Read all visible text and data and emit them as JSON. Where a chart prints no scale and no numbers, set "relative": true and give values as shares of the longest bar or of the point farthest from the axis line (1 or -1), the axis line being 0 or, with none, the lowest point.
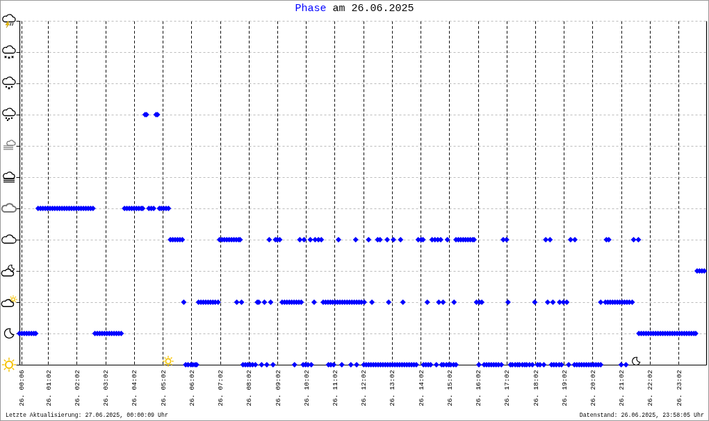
{
  "chart_data": {
    "type": "scatter",
    "title": "Phase am 26.06.2025",
    "annotations": [
      "Letzte Aktualisierung: 27.06.2025, 00:00:09 Uhr",
      "Datenstand: 26.06.2025, 23:58:05 Uhr"
    ],
    "relative": true,
    "x": [
      "2025-06-26T00:02",
      "2025-06-26T00:07",
      "2025-06-26T00:12",
      "2025-06-26T00:17",
      "2025-06-26T00:22",
      "2025-06-26T00:27",
      "2025-06-26T00:32",
      "2025-06-26T00:36",
      "2025-06-26T00:41",
      "2025-06-26T00:46",
      "2025-06-26T00:51",
      "2025-06-26T00:56",
      "2025-06-26T01:01",
      "2025-06-26T01:06",
      "2025-06-26T01:11",
      "2025-06-26T01:16",
      "2025-06-26T01:21",
      "2025-06-26T01:26",
      "2025-06-26T01:31",
      "2025-06-26T01:36",
      "2025-06-26T01:41",
      "2025-06-26T01:46",
      "2025-06-26T01:51",
      "2025-06-26T01:56",
      "2025-06-26T02:01",
      "2025-06-26T02:06",
      "2025-06-26T02:11",
      "2025-06-26T02:16",
      "2025-06-26T02:21",
      "2025-06-26T02:26",
      "2025-06-26T02:31",
      "2025-06-26T02:36",
      "2025-06-26T02:40",
      "2025-06-26T02:45",
      "2025-06-26T02:50",
      "2025-06-26T02:55",
      "2025-06-26T03:00",
      "2025-06-26T03:05",
      "2025-06-26T03:10",
      "2025-06-26T03:15",
      "2025-06-26T03:20",
      "2025-06-26T03:25",
      "2025-06-26T03:30",
      "2025-06-26T03:35",
      "2025-06-26T03:42",
      "2025-06-26T03:47",
      "2025-06-26T03:52",
      "2025-06-26T03:57",
      "2025-06-26T04:02",
      "2025-06-26T04:07",
      "2025-06-26T04:12",
      "2025-06-26T04:17",
      "2025-06-26T04:20",
      "2025-06-26T04:33",
      "2025-06-26T04:38",
      "2025-06-26T04:43",
      "2025-06-26T04:55",
      "2025-06-26T04:59",
      "2025-06-26T05:04",
      "2025-06-26T05:09",
      "2025-06-26T05:14",
      "2025-06-26T04:25",
      "2025-06-26T04:28",
      "2025-06-26T04:48",
      "2025-06-26T04:51",
      "2025-06-26T05:18",
      "2025-06-26T05:23",
      "2025-06-26T05:28",
      "2025-06-26T05:33",
      "2025-06-26T05:38",
      "2025-06-26T05:43",
      "2025-06-26T05:46",
      "2025-06-26T05:50",
      "2025-06-26T05:55",
      "2025-06-26T06:01",
      "2025-06-26T06:05",
      "2025-06-26T06:10",
      "2025-06-26T06:13",
      "2025-06-26T06:17",
      "2025-06-26T06:22",
      "2025-06-26T06:27",
      "2025-06-26T06:32",
      "2025-06-26T06:37",
      "2025-06-26T06:42",
      "2025-06-26T06:47",
      "2025-06-26T06:52",
      "2025-06-26T06:58",
      "2025-06-26T07:01",
      "2025-06-26T07:06",
      "2025-06-26T07:11",
      "2025-06-26T07:16",
      "2025-06-26T07:21",
      "2025-06-26T07:26",
      "2025-06-26T07:31",
      "2025-06-26T07:36",
      "2025-06-26T07:41",
      "2025-06-26T07:44",
      "2025-06-26T07:37",
      "2025-06-26T07:47",
      "2025-06-26T07:50",
      "2025-06-26T07:55",
      "2025-06-26T08:00",
      "2025-06-26T08:05",
      "2025-06-26T08:10",
      "2025-06-26T08:16",
      "2025-06-26T08:20",
      "2025-06-26T08:23",
      "2025-06-26T08:35",
      "2025-06-26T08:48",
      "2025-06-26T08:29",
      "2025-06-26T08:40",
      "2025-06-26T08:53",
      "2025-06-26T08:45",
      "2025-06-26T08:58",
      "2025-06-26T09:02",
      "2025-06-26T09:07",
      "2025-06-26T09:12",
      "2025-06-26T09:17",
      "2025-06-26T09:22",
      "2025-06-26T09:27",
      "2025-06-26T09:32",
      "2025-06-26T09:37",
      "2025-06-26T09:42",
      "2025-06-26T09:47",
      "2025-06-26T09:52",
      "2025-06-26T09:38",
      "2025-06-26T09:56",
      "2025-06-26T10:01",
      "2025-06-26T10:06",
      "2025-06-26T10:13",
      "2025-06-26T09:49",
      "2025-06-26T09:58",
      "2025-06-26T10:11",
      "2025-06-26T10:21",
      "2025-06-26T10:28",
      "2025-06-26T10:34",
      "2025-06-26T10:19",
      "2025-06-26T10:38",
      "2025-06-26T10:43",
      "2025-06-26T10:48",
      "2025-06-26T10:53",
      "2025-06-26T10:58",
      "2025-06-26T11:03",
      "2025-06-26T11:08",
      "2025-06-26T11:13",
      "2025-06-26T11:18",
      "2025-06-26T11:23",
      "2025-06-26T11:28",
      "2025-06-26T11:33",
      "2025-06-26T11:38",
      "2025-06-26T11:43",
      "2025-06-26T11:48",
      "2025-06-26T11:53",
      "2025-06-26T11:58",
      "2025-06-26T12:04",
      "2025-06-26T10:49",
      "2025-06-26T10:54",
      "2025-06-26T11:00",
      "2025-06-26T11:17",
      "2025-06-26T11:36",
      "2025-06-26T11:48",
      "2025-06-26T11:10",
      "2025-06-26T11:46",
      "2025-06-26T12:20",
      "2025-06-26T12:55",
      "2025-06-26T13:25",
      "2025-06-26T14:16",
      "2025-06-26T14:40",
      "2025-06-26T14:49",
      "2025-06-26T15:12",
      "2025-06-26T12:13",
      "2025-06-26T12:32",
      "2025-06-26T12:37",
      "2025-06-26T12:52",
      "2025-06-26T13:05",
      "2025-06-26T13:20",
      "2025-06-26T13:57",
      "2025-06-26T14:03",
      "2025-06-26T14:07",
      "2025-06-26T14:26",
      "2025-06-26T14:32",
      "2025-06-26T14:38",
      "2025-06-26T14:44",
      "2025-06-26T14:58",
      "2025-06-26T12:03",
      "2025-06-26T12:08",
      "2025-06-26T12:13",
      "2025-06-26T12:18",
      "2025-06-26T12:23",
      "2025-06-26T12:28",
      "2025-06-26T12:33",
      "2025-06-26T12:38",
      "2025-06-26T12:43",
      "2025-06-26T12:48",
      "2025-06-26T12:53",
      "2025-06-26T12:58",
      "2025-06-26T13:03",
      "2025-06-26T13:08",
      "2025-06-26T13:13",
      "2025-06-26T13:18",
      "2025-06-26T13:23",
      "2025-06-26T13:28",
      "2025-06-26T13:33",
      "2025-06-26T13:38",
      "2025-06-26T13:43",
      "2025-06-26T13:48",
      "2025-06-26T13:53",
      "2025-06-26T14:08",
      "2025-06-26T14:13",
      "2025-06-26T14:18",
      "2025-06-26T14:23",
      "2025-06-26T14:35",
      "2025-06-26T14:46",
      "2025-06-26T14:50",
      "2025-06-26T14:56",
      "2025-06-26T15:01",
      "2025-06-26T15:05",
      "2025-06-26T15:11",
      "2025-06-26T15:16",
      "2025-06-26T15:16",
      "2025-06-26T15:21",
      "2025-06-26T15:26",
      "2025-06-26T15:31",
      "2025-06-26T15:36",
      "2025-06-26T15:41",
      "2025-06-26T15:46",
      "2025-06-26T15:51",
      "2025-06-26T15:54",
      "2025-06-26T15:59",
      "2025-06-26T16:05",
      "2025-06-26T16:10",
      "2025-06-26T16:04",
      "2025-06-26T16:15",
      "2025-06-26T16:20",
      "2025-06-26T16:25",
      "2025-06-26T16:30",
      "2025-06-26T16:35",
      "2025-06-26T16:40",
      "2025-06-26T16:45",
      "2025-06-26T16:51",
      "2025-06-26T16:55",
      "2025-06-26T17:02",
      "2025-06-26T17:05",
      "2025-06-26T17:10",
      "2025-06-26T17:14",
      "2025-06-26T17:20",
      "2025-06-26T17:25",
      "2025-06-26T17:29",
      "2025-06-26T17:35",
      "2025-06-26T17:40",
      "2025-06-26T17:44",
      "2025-06-26T17:50",
      "2025-06-26T17:56",
      "2025-06-26T18:01",
      "2025-06-26T18:07",
      "2025-06-26T18:12",
      "2025-06-26T18:20",
      "2025-06-26T18:24",
      "2025-06-26T18:33",
      "2025-06-26T18:28",
      "2025-06-26T18:39",
      "2025-06-26T18:36",
      "2025-06-26T18:41",
      "2025-06-26T18:46",
      "2025-06-26T18:52",
      "2025-06-26T18:57",
      "2025-06-26T18:53",
      "2025-06-26T19:01",
      "2025-06-26T19:08",
      "2025-06-26T19:12",
      "2025-06-26T19:16",
      "2025-06-26T19:25",
      "2025-06-26T19:24",
      "2025-06-26T19:29",
      "2025-06-26T19:34",
      "2025-06-26T19:39",
      "2025-06-26T19:44",
      "2025-06-26T19:49",
      "2025-06-26T19:54",
      "2025-06-26T19:59",
      "2025-06-26T20:04",
      "2025-06-26T20:09",
      "2025-06-26T20:14",
      "2025-06-26T20:19",
      "2025-06-26T20:19",
      "2025-06-26T20:29",
      "2025-06-26T20:34",
      "2025-06-26T20:39",
      "2025-06-26T20:44",
      "2025-06-26T20:49",
      "2025-06-26T20:54",
      "2025-06-26T20:59",
      "2025-06-26T21:04",
      "2025-06-26T21:09",
      "2025-06-26T21:14",
      "2025-06-26T21:19",
      "2025-06-26T21:25",
      "2025-06-26T20:31",
      "2025-06-26T20:36",
      "2025-06-26T21:02",
      "2025-06-26T21:12",
      "2025-06-26T21:28",
      "2025-06-26T21:38",
      "2025-06-26T21:39",
      "2025-06-26T21:44",
      "2025-06-26T21:49",
      "2025-06-26T21:54",
      "2025-06-26T21:59",
      "2025-06-26T22:04",
      "2025-06-26T22:09",
      "2025-06-26T22:14",
      "2025-06-26T22:19",
      "2025-06-26T22:24",
      "2025-06-26T22:29",
      "2025-06-26T22:34",
      "2025-06-26T22:39",
      "2025-06-26T22:44",
      "2025-06-26T22:49",
      "2025-06-26T22:54",
      "2025-06-26T22:59",
      "2025-06-26T23:04",
      "2025-06-26T23:09",
      "2025-06-26T23:14",
      "2025-06-26T23:19",
      "2025-06-26T23:24",
      "2025-06-26T23:29",
      "2025-06-26T23:34",
      "2025-06-26T23:38",
      "2025-06-26T23:41",
      "2025-06-26T23:46",
      "2025-06-26T23:51",
      "2025-06-26T23:56"
    ],
    "values": [
      0.125,
      0.125,
      0.125,
      0.125,
      0.125,
      0.125,
      0.125,
      0.125,
      0.625,
      0.625,
      0.625,
      0.625,
      0.625,
      0.625,
      0.625,
      0.625,
      0.625,
      0.625,
      0.625,
      0.625,
      0.625,
      0.625,
      0.625,
      0.625,
      0.625,
      0.625,
      0.625,
      0.625,
      0.625,
      0.625,
      0.625,
      0.625,
      0.125,
      0.125,
      0.125,
      0.125,
      0.125,
      0.125,
      0.125,
      0.125,
      0.125,
      0.125,
      0.125,
      0.125,
      0.625,
      0.625,
      0.625,
      0.625,
      0.625,
      0.625,
      0.625,
      0.625,
      0.625,
      0.625,
      0.625,
      0.625,
      0.625,
      0.625,
      0.625,
      0.625,
      0.625,
      1,
      1,
      1,
      1,
      0.5,
      0.5,
      0.5,
      0.5,
      0.5,
      0.5,
      0.25,
      0,
      0,
      0,
      0,
      0,
      0,
      0.25,
      0.25,
      0.25,
      0.25,
      0.25,
      0.25,
      0.25,
      0.25,
      0.25,
      0.5,
      0.5,
      0.5,
      0.5,
      0.5,
      0.5,
      0.5,
      0.5,
      0.5,
      0.5,
      0.25,
      0.25,
      0,
      0,
      0,
      0,
      0,
      0,
      0.25,
      0.25,
      0.25,
      0.25,
      0,
      0,
      0,
      0.5,
      0.5,
      0.5,
      0.5,
      0.25,
      0.25,
      0.25,
      0.25,
      0.25,
      0.25,
      0.25,
      0.25,
      0.25,
      0,
      0,
      0,
      0,
      0,
      0.5,
      0.5,
      0.5,
      0.5,
      0.5,
      0.5,
      0.25,
      0.25,
      0.25,
      0.25,
      0.25,
      0.25,
      0.25,
      0.25,
      0.25,
      0.25,
      0.25,
      0.25,
      0.25,
      0.25,
      0.25,
      0.25,
      0.25,
      0.25,
      0.25,
      0,
      0,
      0,
      0,
      0,
      0,
      0.5,
      0.5,
      0.25,
      0.25,
      0.25,
      0.25,
      0.25,
      0.25,
      0.25,
      0.5,
      0.5,
      0.5,
      0.5,
      0.5,
      0.5,
      0.5,
      0.5,
      0.5,
      0.5,
      0.5,
      0.5,
      0.5,
      0.5,
      0,
      0,
      0,
      0,
      0,
      0,
      0,
      0,
      0,
      0,
      0,
      0,
      0,
      0,
      0,
      0,
      0,
      0,
      0,
      0,
      0,
      0,
      0,
      0,
      0,
      0,
      0,
      0,
      0,
      0,
      0,
      0,
      0,
      0,
      0,
      0.5,
      0.5,
      0.5,
      0.5,
      0.5,
      0.5,
      0.5,
      0.5,
      0.5,
      0.25,
      0.25,
      0.25,
      0,
      0,
      0,
      0,
      0,
      0,
      0,
      0,
      0,
      0.5,
      0.5,
      0.25,
      0,
      0,
      0,
      0,
      0,
      0,
      0,
      0,
      0,
      0,
      0.25,
      0,
      0,
      0,
      0.5,
      0.5,
      0.25,
      0.25,
      0,
      0,
      0,
      0,
      0,
      0.25,
      0.25,
      0.25,
      0,
      0.5,
      0.5,
      0,
      0,
      0,
      0,
      0,
      0,
      0,
      0,
      0,
      0,
      0,
      0,
      0.25,
      0.25,
      0.25,
      0.25,
      0.25,
      0.25,
      0.25,
      0.25,
      0.25,
      0.25,
      0.25,
      0.25,
      0.25,
      0.5,
      0.5,
      0,
      0,
      0.5,
      0.5,
      0.125,
      0.125,
      0.125,
      0.125,
      0.125,
      0.125,
      0.125,
      0.125,
      0.125,
      0.125,
      0.125,
      0.125,
      0.125,
      0.125,
      0.125,
      0.125,
      0.125,
      0.125,
      0.125,
      0.125,
      0.125,
      0.125,
      0.125,
      0.125,
      0.125,
      0.375,
      0.375,
      0.375,
      0.375
    ],
    "color": "#0000ff",
    "marker": "diamond",
    "xlim": [
      "2025-06-26T00:02",
      "2025-06-27T00:00"
    ],
    "xticks": [
      {
        "value": "2025-06-26T00:06",
        "label": "26. 00:06"
      },
      {
        "value": "2025-06-26T01:02",
        "label": "26. 01:02"
      },
      {
        "value": "2025-06-26T02:02",
        "label": "26. 02:02"
      },
      {
        "value": "2025-06-26T03:02",
        "label": "26. 03:02"
      },
      {
        "value": "2025-06-26T04:02",
        "label": "26. 04:02"
      },
      {
        "value": "2025-06-26T05:02",
        "label": "26. 05:02"
      },
      {
        "value": "2025-06-26T06:02",
        "label": "26. 06:02"
      },
      {
        "value": "2025-06-26T07:02",
        "label": "26. 07:02"
      },
      {
        "value": "2025-06-26T08:02",
        "label": "26. 08:02"
      },
      {
        "value": "2025-06-26T09:02",
        "label": "26. 09:02"
      },
      {
        "value": "2025-06-26T10:02",
        "label": "26. 10:02"
      },
      {
        "value": "2025-06-26T11:02",
        "label": "26. 11:02"
      },
      {
        "value": "2025-06-26T12:02",
        "label": "26. 12:02"
      },
      {
        "value": "2025-06-26T13:02",
        "label": "26. 13:02"
      },
      {
        "value": "2025-06-26T14:02",
        "label": "26. 14:02"
      },
      {
        "value": "2025-06-26T15:02",
        "label": "26. 15:02"
      },
      {
        "value": "2025-06-26T16:02",
        "label": "26. 16:02"
      },
      {
        "value": "2025-06-26T17:02",
        "label": "26. 17:02"
      },
      {
        "value": "2025-06-26T18:02",
        "label": "26. 18:02"
      },
      {
        "value": "2025-06-26T19:02",
        "label": "26. 19:02"
      },
      {
        "value": "2025-06-26T20:02",
        "label": "26. 20:02"
      },
      {
        "value": "2025-06-26T21:02",
        "label": "26. 21:02"
      },
      {
        "value": "2025-06-26T22:02",
        "label": "26. 22:02"
      },
      {
        "value": "2025-06-26T23:02",
        "label": "26. 23:02"
      }
    ],
    "grid": true,
    "tick_labels": "x"
  }
}
